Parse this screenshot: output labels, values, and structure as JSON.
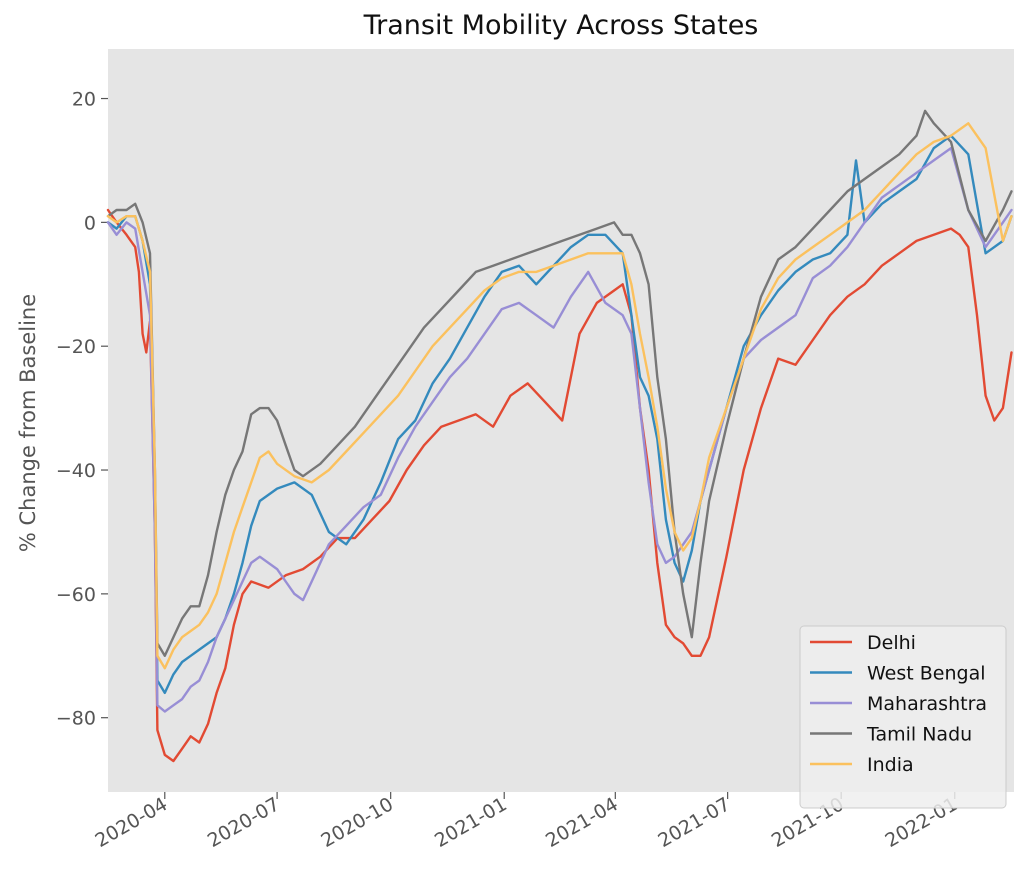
{
  "chart_data": {
    "type": "line",
    "title": "Transit Mobility Across States",
    "xlabel": "",
    "ylabel": "% Change from Baseline",
    "x_range": [
      "2020-02-15",
      "2022-02-18"
    ],
    "ylim": [
      -92,
      28
    ],
    "yticks": [
      20,
      0,
      -20,
      -40,
      -60,
      -80
    ],
    "ytick_labels": [
      "20",
      "0",
      "−20",
      "−40",
      "−60",
      "−80"
    ],
    "xticks": [
      "2020-04-01",
      "2020-07-01",
      "2020-10-01",
      "2021-01-01",
      "2021-04-01",
      "2021-07-01",
      "2021-10-01",
      "2022-01-01"
    ],
    "xtick_labels": [
      "2020-04",
      "2020-07",
      "2020-10",
      "2021-01",
      "2021-04",
      "2021-07",
      "2021-10",
      "2022-01"
    ],
    "grid": false,
    "legend_position": "lower-right",
    "colors": {
      "background": "#e5e5e5",
      "axis_text": "#555555",
      "legend_bg": "#eeeeee",
      "legend_border": "#cccccc"
    },
    "series": [
      {
        "name": "Delhi",
        "color": "#E24A33",
        "x": [
          "2020-02-15",
          "2020-02-22",
          "2020-03-01",
          "2020-03-08",
          "2020-03-11",
          "2020-03-14",
          "2020-03-17",
          "2020-03-20",
          "2020-03-24",
          "2020-03-26",
          "2020-04-01",
          "2020-04-08",
          "2020-04-15",
          "2020-04-22",
          "2020-04-29",
          "2020-05-06",
          "2020-05-13",
          "2020-05-20",
          "2020-05-27",
          "2020-06-03",
          "2020-06-10",
          "2020-06-24",
          "2020-07-08",
          "2020-07-22",
          "2020-08-05",
          "2020-08-19",
          "2020-09-02",
          "2020-09-16",
          "2020-09-30",
          "2020-10-14",
          "2020-10-28",
          "2020-11-11",
          "2020-11-25",
          "2020-12-09",
          "2020-12-23",
          "2021-01-06",
          "2021-01-20",
          "2021-02-03",
          "2021-02-17",
          "2021-03-03",
          "2021-03-17",
          "2021-03-31",
          "2021-04-07",
          "2021-04-14",
          "2021-04-21",
          "2021-04-28",
          "2021-05-05",
          "2021-05-12",
          "2021-05-19",
          "2021-05-26",
          "2021-06-02",
          "2021-06-09",
          "2021-06-16",
          "2021-06-30",
          "2021-07-14",
          "2021-07-28",
          "2021-08-11",
          "2021-08-25",
          "2021-09-08",
          "2021-09-22",
          "2021-10-06",
          "2021-10-20",
          "2021-11-03",
          "2021-11-17",
          "2021-12-01",
          "2021-12-15",
          "2021-12-29",
          "2022-01-05",
          "2022-01-12",
          "2022-01-19",
          "2022-01-26",
          "2022-02-02",
          "2022-02-09",
          "2022-02-16"
        ],
        "values": [
          2,
          0,
          -2,
          -4,
          -8,
          -18,
          -21,
          -16,
          -50,
          -82,
          -86,
          -87,
          -85,
          -83,
          -84,
          -81,
          -76,
          -72,
          -65,
          -60,
          -58,
          -59,
          -57,
          -56,
          -54,
          -51,
          -51,
          -48,
          -45,
          -40,
          -36,
          -33,
          -32,
          -31,
          -33,
          -28,
          -26,
          -29,
          -32,
          -18,
          -13,
          -11,
          -10,
          -15,
          -30,
          -40,
          -55,
          -65,
          -67,
          -68,
          -70,
          -70,
          -67,
          -54,
          -40,
          -30,
          -22,
          -23,
          -19,
          -15,
          -12,
          -10,
          -7,
          -5,
          -3,
          -2,
          -1,
          -2,
          -4,
          -15,
          -28,
          -32,
          -30,
          -21
        ]
      },
      {
        "name": "West Bengal",
        "color": "#348ABD",
        "x": [
          "2020-02-15",
          "2020-02-22",
          "2020-03-01",
          "2020-03-08",
          "2020-03-14",
          "2020-03-20",
          "2020-03-24",
          "2020-03-26",
          "2020-04-01",
          "2020-04-08",
          "2020-04-15",
          "2020-04-22",
          "2020-04-29",
          "2020-05-06",
          "2020-05-13",
          "2020-05-20",
          "2020-05-27",
          "2020-06-03",
          "2020-06-10",
          "2020-06-17",
          "2020-07-01",
          "2020-07-15",
          "2020-07-29",
          "2020-08-12",
          "2020-08-26",
          "2020-09-09",
          "2020-09-23",
          "2020-10-07",
          "2020-10-21",
          "2020-11-04",
          "2020-11-18",
          "2020-12-02",
          "2020-12-16",
          "2020-12-30",
          "2021-01-13",
          "2021-01-27",
          "2021-02-10",
          "2021-02-24",
          "2021-03-10",
          "2021-03-24",
          "2021-04-07",
          "2021-04-14",
          "2021-04-21",
          "2021-04-28",
          "2021-05-05",
          "2021-05-12",
          "2021-05-19",
          "2021-05-26",
          "2021-06-02",
          "2021-06-09",
          "2021-06-16",
          "2021-06-30",
          "2021-07-14",
          "2021-07-28",
          "2021-08-11",
          "2021-08-25",
          "2021-09-08",
          "2021-09-22",
          "2021-10-06",
          "2021-10-13",
          "2021-10-20",
          "2021-11-03",
          "2021-11-17",
          "2021-12-01",
          "2021-12-15",
          "2021-12-29",
          "2022-01-12",
          "2022-01-26",
          "2022-02-09",
          "2022-02-16"
        ],
        "values": [
          0,
          -1,
          1,
          1,
          -3,
          -10,
          -45,
          -74,
          -76,
          -73,
          -71,
          -70,
          -69,
          -68,
          -67,
          -64,
          -60,
          -55,
          -49,
          -45,
          -43,
          -42,
          -44,
          -50,
          -52,
          -48,
          -42,
          -35,
          -32,
          -26,
          -22,
          -17,
          -12,
          -8,
          -7,
          -10,
          -7,
          -4,
          -2,
          -2,
          -5,
          -15,
          -25,
          -28,
          -35,
          -48,
          -55,
          -58,
          -53,
          -45,
          -40,
          -30,
          -20,
          -15,
          -11,
          -8,
          -6,
          -5,
          -2,
          10,
          0,
          3,
          5,
          7,
          12,
          14,
          11,
          -5,
          -3,
          1
        ]
      },
      {
        "name": "Maharashtra",
        "color": "#988ED5",
        "x": [
          "2020-02-15",
          "2020-02-22",
          "2020-03-01",
          "2020-03-08",
          "2020-03-14",
          "2020-03-20",
          "2020-03-24",
          "2020-03-26",
          "2020-04-01",
          "2020-04-08",
          "2020-04-15",
          "2020-04-22",
          "2020-04-29",
          "2020-05-06",
          "2020-05-13",
          "2020-05-20",
          "2020-05-27",
          "2020-06-03",
          "2020-06-10",
          "2020-06-17",
          "2020-07-01",
          "2020-07-08",
          "2020-07-15",
          "2020-07-22",
          "2020-07-29",
          "2020-08-05",
          "2020-08-12",
          "2020-08-26",
          "2020-09-09",
          "2020-09-23",
          "2020-10-07",
          "2020-10-21",
          "2020-11-04",
          "2020-11-18",
          "2020-12-02",
          "2020-12-16",
          "2020-12-30",
          "2021-01-13",
          "2021-01-27",
          "2021-02-10",
          "2021-02-24",
          "2021-03-10",
          "2021-03-24",
          "2021-04-07",
          "2021-04-14",
          "2021-04-21",
          "2021-04-28",
          "2021-05-05",
          "2021-05-12",
          "2021-05-19",
          "2021-05-26",
          "2021-06-02",
          "2021-06-09",
          "2021-06-16",
          "2021-06-30",
          "2021-07-14",
          "2021-07-28",
          "2021-08-11",
          "2021-08-25",
          "2021-09-08",
          "2021-09-22",
          "2021-10-06",
          "2021-10-20",
          "2021-11-03",
          "2021-11-17",
          "2021-12-01",
          "2021-12-15",
          "2021-12-29",
          "2022-01-12",
          "2022-01-26",
          "2022-02-09",
          "2022-02-16"
        ],
        "values": [
          0,
          -2,
          0,
          -1,
          -8,
          -15,
          -50,
          -78,
          -79,
          -78,
          -77,
          -75,
          -74,
          -71,
          -67,
          -64,
          -61,
          -58,
          -55,
          -54,
          -56,
          -58,
          -60,
          -61,
          -58,
          -55,
          -52,
          -49,
          -46,
          -44,
          -38,
          -33,
          -29,
          -25,
          -22,
          -18,
          -14,
          -13,
          -15,
          -17,
          -12,
          -8,
          -13,
          -15,
          -18,
          -30,
          -42,
          -52,
          -55,
          -54,
          -52,
          -50,
          -45,
          -40,
          -30,
          -22,
          -19,
          -17,
          -15,
          -9,
          -7,
          -4,
          0,
          4,
          6,
          8,
          10,
          12,
          2,
          -4,
          0,
          2
        ]
      },
      {
        "name": "Tamil Nadu",
        "color": "#777777",
        "x": [
          "2020-02-15",
          "2020-02-22",
          "2020-03-01",
          "2020-03-08",
          "2020-03-14",
          "2020-03-20",
          "2020-03-24",
          "2020-03-26",
          "2020-04-01",
          "2020-04-08",
          "2020-04-15",
          "2020-04-22",
          "2020-04-29",
          "2020-05-06",
          "2020-05-13",
          "2020-05-20",
          "2020-05-27",
          "2020-06-03",
          "2020-06-10",
          "2020-06-17",
          "2020-06-24",
          "2020-07-01",
          "2020-07-08",
          "2020-07-15",
          "2020-07-22",
          "2020-08-05",
          "2020-08-19",
          "2020-09-02",
          "2020-09-16",
          "2020-09-30",
          "2020-10-14",
          "2020-10-28",
          "2020-11-11",
          "2020-11-25",
          "2020-12-09",
          "2020-12-23",
          "2021-01-06",
          "2021-01-20",
          "2021-02-03",
          "2021-02-17",
          "2021-03-03",
          "2021-03-17",
          "2021-03-31",
          "2021-04-07",
          "2021-04-14",
          "2021-04-21",
          "2021-04-28",
          "2021-05-05",
          "2021-05-12",
          "2021-05-19",
          "2021-05-26",
          "2021-06-02",
          "2021-06-09",
          "2021-06-16",
          "2021-06-30",
          "2021-07-14",
          "2021-07-28",
          "2021-08-11",
          "2021-08-25",
          "2021-09-08",
          "2021-09-22",
          "2021-10-06",
          "2021-10-20",
          "2021-11-03",
          "2021-11-17",
          "2021-12-01",
          "2021-12-08",
          "2021-12-15",
          "2021-12-29",
          "2022-01-12",
          "2022-01-26",
          "2022-02-09",
          "2022-02-16"
        ],
        "values": [
          1,
          2,
          2,
          3,
          0,
          -5,
          -40,
          -68,
          -70,
          -67,
          -64,
          -62,
          -62,
          -57,
          -50,
          -44,
          -40,
          -37,
          -31,
          -30,
          -30,
          -32,
          -36,
          -40,
          -41,
          -39,
          -36,
          -33,
          -29,
          -25,
          -21,
          -17,
          -14,
          -11,
          -8,
          -7,
          -6,
          -5,
          -4,
          -3,
          -2,
          -1,
          0,
          -2,
          -2,
          -5,
          -10,
          -25,
          -35,
          -50,
          -60,
          -67,
          -55,
          -45,
          -33,
          -22,
          -12,
          -6,
          -4,
          -1,
          2,
          5,
          7,
          9,
          11,
          14,
          18,
          16,
          13,
          2,
          -3,
          2,
          5
        ]
      },
      {
        "name": "India",
        "color": "#FBC15E",
        "x": [
          "2020-02-15",
          "2020-02-22",
          "2020-03-01",
          "2020-03-08",
          "2020-03-14",
          "2020-03-20",
          "2020-03-24",
          "2020-03-26",
          "2020-04-01",
          "2020-04-08",
          "2020-04-15",
          "2020-04-22",
          "2020-04-29",
          "2020-05-06",
          "2020-05-13",
          "2020-05-20",
          "2020-05-27",
          "2020-06-03",
          "2020-06-10",
          "2020-06-17",
          "2020-06-24",
          "2020-07-01",
          "2020-07-15",
          "2020-07-29",
          "2020-08-12",
          "2020-08-26",
          "2020-09-09",
          "2020-09-23",
          "2020-10-07",
          "2020-10-21",
          "2020-11-04",
          "2020-11-18",
          "2020-12-02",
          "2020-12-16",
          "2020-12-30",
          "2021-01-13",
          "2021-01-27",
          "2021-02-10",
          "2021-02-24",
          "2021-03-10",
          "2021-03-24",
          "2021-04-07",
          "2021-04-14",
          "2021-04-21",
          "2021-04-28",
          "2021-05-05",
          "2021-05-12",
          "2021-05-19",
          "2021-05-26",
          "2021-06-02",
          "2021-06-09",
          "2021-06-16",
          "2021-06-30",
          "2021-07-14",
          "2021-07-28",
          "2021-08-11",
          "2021-08-25",
          "2021-09-08",
          "2021-09-22",
          "2021-10-06",
          "2021-10-20",
          "2021-11-03",
          "2021-11-17",
          "2021-12-01",
          "2021-12-15",
          "2021-12-29",
          "2022-01-12",
          "2022-01-26",
          "2022-02-09",
          "2022-02-16"
        ],
        "values": [
          1,
          0,
          1,
          1,
          -3,
          -8,
          -40,
          -70,
          -72,
          -69,
          -67,
          -66,
          -65,
          -63,
          -60,
          -55,
          -50,
          -46,
          -42,
          -38,
          -37,
          -39,
          -41,
          -42,
          -40,
          -37,
          -34,
          -31,
          -28,
          -24,
          -20,
          -17,
          -14,
          -11,
          -9,
          -8,
          -8,
          -7,
          -6,
          -5,
          -5,
          -5,
          -10,
          -18,
          -25,
          -33,
          -43,
          -50,
          -53,
          -51,
          -45,
          -38,
          -30,
          -22,
          -14,
          -9,
          -6,
          -4,
          -2,
          0,
          2,
          5,
          8,
          11,
          13,
          14,
          16,
          12,
          -3,
          1
        ]
      }
    ]
  }
}
